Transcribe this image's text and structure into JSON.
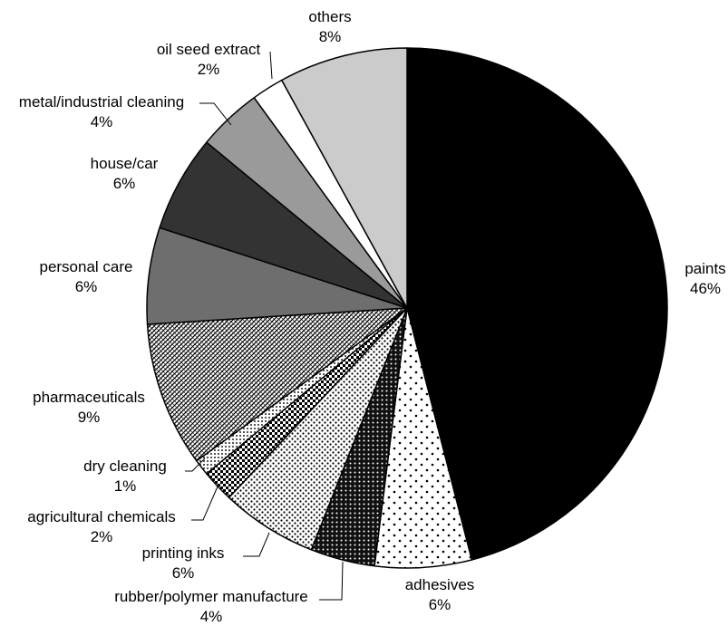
{
  "chart_data": {
    "type": "pie",
    "title": "",
    "slices": [
      {
        "label": "paints",
        "value": 46,
        "value_label": "46%",
        "fill": "#000000",
        "pattern": "solid"
      },
      {
        "label": "adhesives",
        "value": 6,
        "value_label": "6%",
        "fill": "#ffffff",
        "pattern": "sparse-dots"
      },
      {
        "label": "rubber/polymer manufacture",
        "value": 4,
        "value_label": "4%",
        "fill": "#111111",
        "pattern": "dense-white-dots"
      },
      {
        "label": "printing inks",
        "value": 6,
        "value_label": "6%",
        "fill": "#ffffff",
        "pattern": "medium-dots"
      },
      {
        "label": "agricultural chemicals",
        "value": 2,
        "value_label": "2%",
        "fill": "#222222",
        "pattern": "checker"
      },
      {
        "label": "dry cleaning",
        "value": 1,
        "value_label": "1%",
        "fill": "#ffffff",
        "pattern": "fine-grid"
      },
      {
        "label": "pharmaceuticals",
        "value": 9,
        "value_label": "9%",
        "fill": "#ffffff",
        "pattern": "diagonal-hatch"
      },
      {
        "label": "personal care",
        "value": 6,
        "value_label": "6%",
        "fill": "#6e6e6e",
        "pattern": "solid"
      },
      {
        "label": "house/car",
        "value": 6,
        "value_label": "6%",
        "fill": "#333333",
        "pattern": "solid"
      },
      {
        "label": "metal/industrial cleaning",
        "value": 4,
        "value_label": "4%",
        "fill": "#9a9a9a",
        "pattern": "solid"
      },
      {
        "label": "oil seed extract",
        "value": 2,
        "value_label": "2%",
        "fill": "#ffffff",
        "pattern": "solid"
      },
      {
        "label": "others",
        "value": 8,
        "value_label": "8%",
        "fill": "#cbcbcb",
        "pattern": "solid"
      }
    ],
    "start_angle_deg": 0,
    "direction": "clockwise",
    "legend": "none",
    "data_labels": "outside"
  }
}
